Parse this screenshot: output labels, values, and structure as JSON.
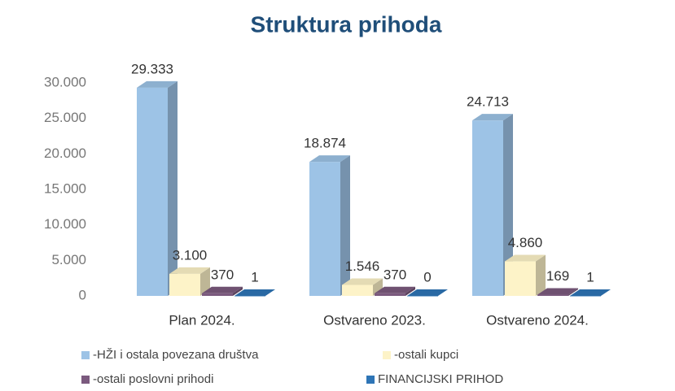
{
  "chart_data": {
    "type": "bar3d",
    "title": "Struktura prihoda",
    "categories": [
      "Plan 2024.",
      "Ostvareno 2023.",
      "Ostvareno 2024."
    ],
    "series": [
      {
        "name": "-HŽI i ostala povezana društva",
        "color": "#9dc3e6",
        "values": [
          29333,
          18874,
          24713
        ],
        "value_labels": [
          "29.333",
          "18.874",
          "24.713"
        ]
      },
      {
        "name": "-ostali kupci",
        "color": "#fdf3c8",
        "values": [
          3100,
          1546,
          4860
        ],
        "value_labels": [
          "3.100",
          "1.546",
          "4.860"
        ]
      },
      {
        "name": "-ostali poslovni prihodi",
        "color": "#7b5a7e",
        "values": [
          370,
          370,
          169
        ]
      },
      {
        "name": "FINANCIJSKI PRIHOD",
        "color": "#2e75b6",
        "values": [
          1,
          0,
          1
        ]
      }
    ],
    "ylim": [
      0,
      30000
    ],
    "yticks": [
      0,
      {
        "value": 5000,
        "label": "5.000"
      },
      {
        "value": 10000,
        "label": "10.000"
      },
      {
        "value": 15000,
        "label": "15.000"
      },
      {
        "value": 20000,
        "label": "20.000"
      },
      {
        "value": 25000,
        "label": "25.000"
      },
      {
        "value": 30000,
        "label": "30.000"
      }
    ]
  }
}
